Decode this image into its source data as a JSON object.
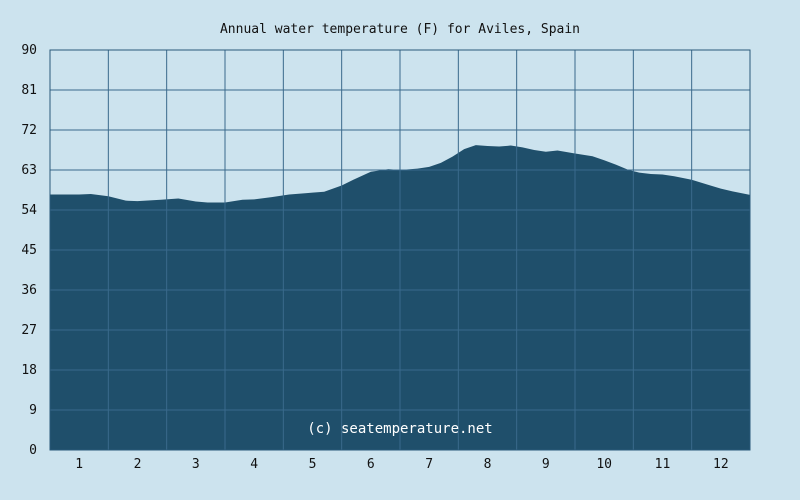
{
  "chart_data": {
    "type": "area",
    "title": "Annual water temperature (F) for Aviles, Spain",
    "watermark": "(c) seatemperature.net",
    "xlabel": "",
    "ylabel": "",
    "ylim": [
      0,
      90
    ],
    "xlim": [
      0.5,
      12.5
    ],
    "yticks": [
      0,
      9,
      18,
      27,
      36,
      45,
      54,
      63,
      72,
      81,
      90
    ],
    "xticks": [
      1,
      2,
      3,
      4,
      5,
      6,
      7,
      8,
      9,
      10,
      11,
      12
    ],
    "grid": true,
    "legend": "none",
    "colors": {
      "background": "#cce3ee",
      "fill": "#1f4f6b",
      "grid": "#3a6a8c",
      "frame": "#2a5a7a"
    },
    "series": [
      {
        "x": [
          0.5,
          1.0,
          1.2,
          1.5,
          1.8,
          2.0,
          2.4,
          2.7,
          3.0,
          3.2,
          3.5,
          3.8,
          4.0,
          4.3,
          4.6,
          4.9,
          5.0,
          5.2,
          5.5,
          5.7,
          6.0,
          6.3,
          6.5,
          6.8,
          7.0,
          7.2,
          7.4,
          7.6,
          7.8,
          8.0,
          8.2,
          8.4,
          8.6,
          8.8,
          9.0,
          9.2,
          9.5,
          9.8,
          10.0,
          10.2,
          10.4,
          10.6,
          10.8,
          11.0,
          11.2,
          11.5,
          11.8,
          12.0,
          12.2,
          12.5
        ],
        "values": [
          57.5,
          57.5,
          57.6,
          57.1,
          56.1,
          56.0,
          56.3,
          56.6,
          55.9,
          55.7,
          55.7,
          56.3,
          56.4,
          56.9,
          57.5,
          57.8,
          57.9,
          58.1,
          59.5,
          60.8,
          62.6,
          63.2,
          63.0,
          63.3,
          63.7,
          64.6,
          66.0,
          67.7,
          68.6,
          68.4,
          68.3,
          68.5,
          68.1,
          67.5,
          67.1,
          67.4,
          66.7,
          66.1,
          65.2,
          64.2,
          63.1,
          62.4,
          62.1,
          62.0,
          61.6,
          60.8,
          59.6,
          58.8,
          58.2,
          57.4
        ]
      }
    ]
  }
}
